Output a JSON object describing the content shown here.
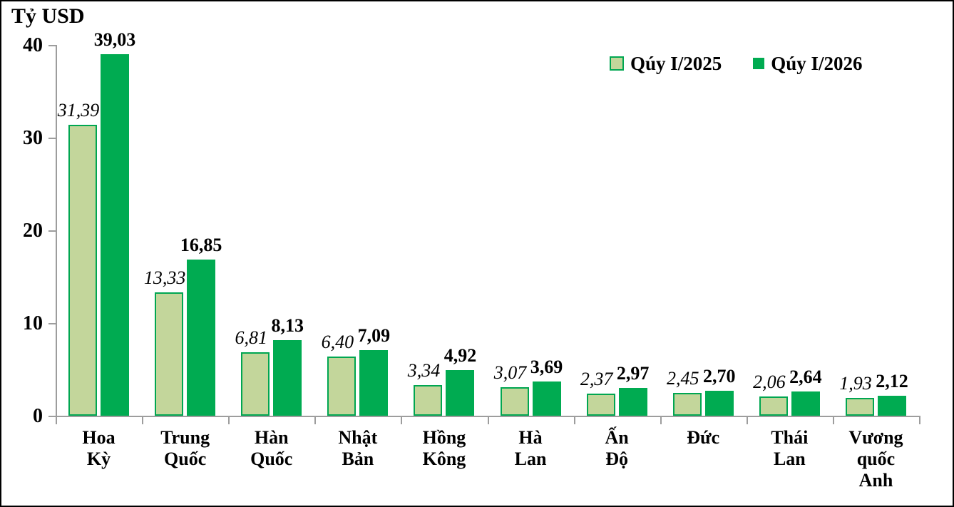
{
  "chart_data": {
    "type": "bar",
    "title": "Tỷ USD",
    "ylabel": "Tỷ USD",
    "xlabel": "",
    "categories": [
      "Hoa Kỳ",
      "Trung Quốc",
      "Hàn Quốc",
      "Nhật Bản",
      "Hồng Kông",
      "Hà Lan",
      "Ấn Độ",
      "Đức",
      "Thái Lan",
      "Vương quốc Anh"
    ],
    "category_label_lines": [
      [
        "Hoa",
        "Kỳ"
      ],
      [
        "Trung",
        "Quốc"
      ],
      [
        "Hàn",
        "Quốc"
      ],
      [
        "Nhật",
        "Bản"
      ],
      [
        "Hồng",
        "Kông"
      ],
      [
        "Hà",
        "Lan"
      ],
      [
        "Ấn",
        "Độ"
      ],
      [
        "Đức"
      ],
      [
        "Thái",
        "Lan"
      ],
      [
        "Vương",
        "quốc",
        "Anh"
      ]
    ],
    "series": [
      {
        "name": "Qúy I/2025",
        "values": [
          31.39,
          13.33,
          6.81,
          6.4,
          3.34,
          3.07,
          2.37,
          2.45,
          2.06,
          1.93
        ],
        "labels": [
          "31,39",
          "13,33",
          "6,81",
          "6,40",
          "3,34",
          "3,07",
          "2,37",
          "2,45",
          "2,06",
          "1,93"
        ],
        "fill": "#c3d69b",
        "border": "#00a651",
        "label_style": "italic"
      },
      {
        "name": "Qúy I/2026",
        "values": [
          39.03,
          16.85,
          8.13,
          7.09,
          4.92,
          3.69,
          2.97,
          2.7,
          2.64,
          2.12
        ],
        "labels": [
          "39,03",
          "16,85",
          "8,13",
          "7,09",
          "4,92",
          "3,69",
          "2,97",
          "2,70",
          "2,64",
          "2,12"
        ],
        "fill": "#00ab51",
        "border": "#00ab51",
        "label_style": "bold"
      }
    ],
    "ylim": [
      0,
      40
    ],
    "yticks": [
      0,
      10,
      20,
      30,
      40
    ],
    "grid": false,
    "legend_position": "top-right",
    "axis_color": "#9d9d9d",
    "text_color": "#000000"
  }
}
